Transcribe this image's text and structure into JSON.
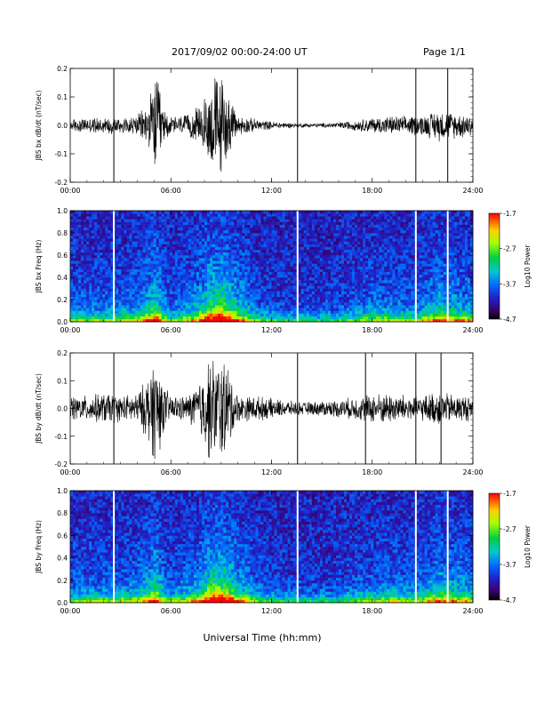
{
  "header": {
    "title": "2017/09/02   00:00-24:00 UT",
    "page": "Page 1/1"
  },
  "xlabel": "Universal Time (hh:mm)",
  "colorbar_ticks": [
    "-1.7",
    "-2.7",
    "-3.7",
    "-4.7"
  ],
  "colorbar_label": "Log10 Power",
  "colors": {
    "trace": "#000000",
    "gap": "#ffffff"
  },
  "chart_data": [
    {
      "type": "line",
      "ylabel": "JBS bx dB/dt (nT/sec)",
      "xlim": [
        0,
        24
      ],
      "ylim": [
        -0.2,
        0.2
      ],
      "xticks": [
        "00:00",
        "06:00",
        "12:00",
        "18:00",
        "24:00"
      ],
      "yticks": [
        "0.2",
        "0.1",
        "0.0",
        "-0.1",
        "-0.2"
      ],
      "envelope_x_hours": [
        0,
        1,
        2,
        2.6,
        3,
        4,
        4.6,
        4.9,
        5.1,
        5.3,
        5.5,
        6,
        7,
        7.8,
        8.2,
        8.5,
        8.8,
        9.2,
        9.5,
        10,
        11,
        12,
        13,
        14,
        15,
        16,
        17,
        18,
        19,
        20,
        20.6,
        21,
        21.5,
        22,
        22.5,
        23,
        24
      ],
      "envelope_amplitude": [
        0.025,
        0.028,
        0.032,
        0.035,
        0.03,
        0.04,
        0.08,
        0.14,
        0.2,
        0.17,
        0.07,
        0.035,
        0.04,
        0.08,
        0.14,
        0.2,
        0.2,
        0.19,
        0.1,
        0.04,
        0.025,
        0.015,
        0.01,
        0.008,
        0.008,
        0.012,
        0.02,
        0.03,
        0.035,
        0.035,
        0.04,
        0.04,
        0.05,
        0.06,
        0.055,
        0.05,
        0.045
      ],
      "gaps_hours": [
        2.6,
        13.55,
        20.6,
        22.5
      ]
    },
    {
      "type": "heatmap",
      "ylabel": "JBS bx Freq (Hz)",
      "xlim": [
        0,
        24
      ],
      "ylim": [
        0,
        1.0
      ],
      "xticks": [
        "00:00",
        "06:00",
        "12:00",
        "18:00",
        "24:00"
      ],
      "yticks": [
        "1.0",
        "0.8",
        "0.6",
        "0.4",
        "0.2",
        "0.0"
      ],
      "zlim": [
        -4.7,
        -1.7
      ],
      "gaps_hours": [
        2.6,
        13.55,
        20.6,
        22.5
      ]
    },
    {
      "type": "line",
      "ylabel": "JBS by dB/dt (nT/sec)",
      "xlim": [
        0,
        24
      ],
      "ylim": [
        -0.2,
        0.2
      ],
      "xticks": [
        "00:00",
        "06:00",
        "12:00",
        "18:00",
        "24:00"
      ],
      "yticks": [
        "0.2",
        "0.1",
        "0.0",
        "-0.1",
        "-0.2"
      ],
      "envelope_x_hours": [
        0,
        1,
        2,
        2.6,
        3,
        4,
        4.6,
        4.9,
        5.1,
        5.3,
        5.5,
        6,
        7,
        7.8,
        8.2,
        8.5,
        8.8,
        9.2,
        9.5,
        10,
        11,
        12,
        13,
        14,
        15,
        16,
        17,
        18,
        19,
        20,
        20.6,
        21,
        21.5,
        22,
        22.5,
        23,
        24
      ],
      "envelope_amplitude": [
        0.05,
        0.05,
        0.06,
        0.06,
        0.05,
        0.06,
        0.12,
        0.2,
        0.2,
        0.2,
        0.1,
        0.05,
        0.05,
        0.12,
        0.2,
        0.2,
        0.2,
        0.2,
        0.15,
        0.05,
        0.05,
        0.04,
        0.03,
        0.025,
        0.03,
        0.035,
        0.045,
        0.06,
        0.06,
        0.055,
        0.05,
        0.05,
        0.06,
        0.07,
        0.06,
        0.055,
        0.05
      ],
      "gaps_hours": [
        2.6,
        13.55,
        17.6,
        20.6,
        22.1
      ]
    },
    {
      "type": "heatmap",
      "ylabel": "JBS by Freq (Hz)",
      "xlim": [
        0,
        24
      ],
      "ylim": [
        0,
        1.0
      ],
      "xticks": [
        "00:00",
        "06:00",
        "12:00",
        "18:00",
        "24:00"
      ],
      "yticks": [
        "1.0",
        "0.8",
        "0.6",
        "0.4",
        "0.2",
        "0.0"
      ],
      "zlim": [
        -4.7,
        -1.7
      ],
      "gaps_hours": [
        2.6,
        13.55,
        20.6,
        22.5
      ]
    }
  ]
}
